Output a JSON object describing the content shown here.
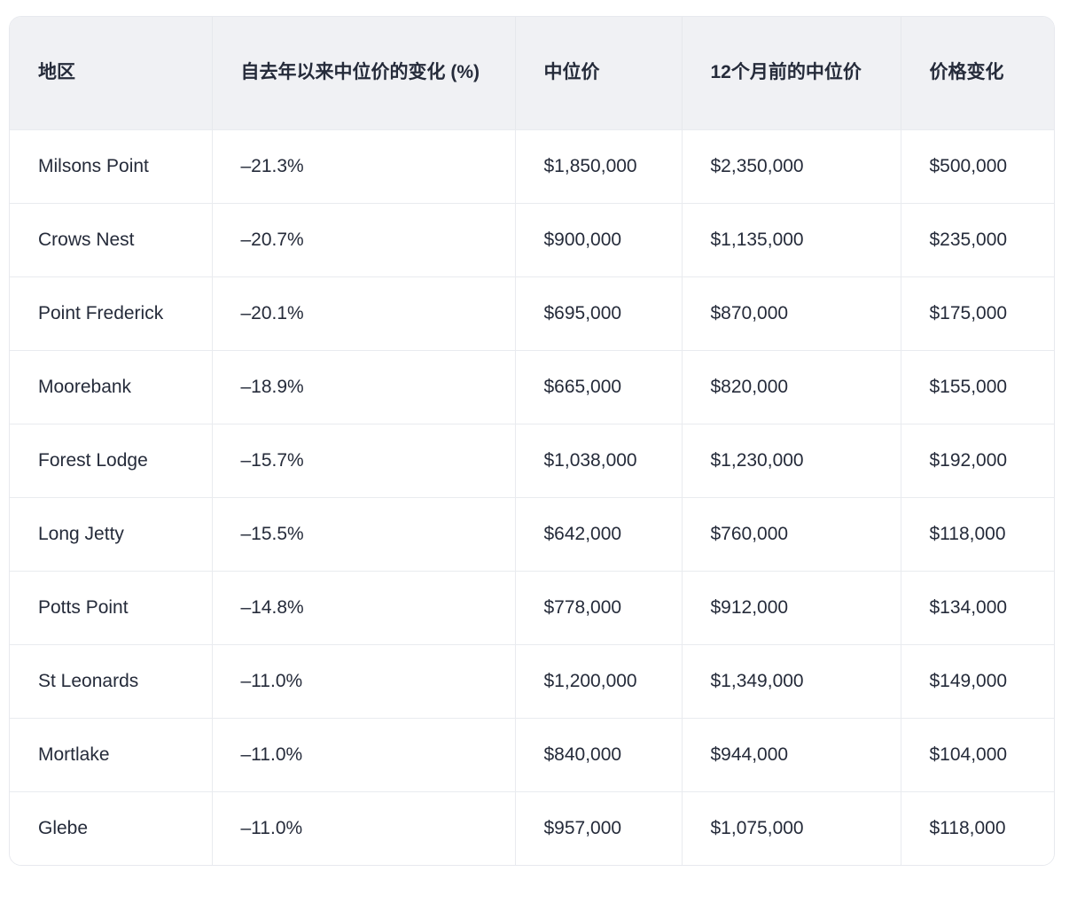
{
  "table": {
    "columns": [
      {
        "key": "region",
        "label": "地区"
      },
      {
        "key": "change_pct",
        "label": "自去年以来中位价的变化 (%)"
      },
      {
        "key": "median_price",
        "label": "中位价"
      },
      {
        "key": "median_12m",
        "label": "12个月前的中位价"
      },
      {
        "key": "price_change",
        "label": "价格变化"
      }
    ],
    "rows": [
      [
        "Milsons Point",
        "–21.3%",
        "$1,850,000",
        "$2,350,000",
        "$500,000"
      ],
      [
        "Crows Nest",
        "–20.7%",
        "$900,000",
        "$1,135,000",
        "$235,000"
      ],
      [
        "Point Frederick",
        "–20.1%",
        "$695,000",
        "$870,000",
        "$175,000"
      ],
      [
        "Moorebank",
        "–18.9%",
        "$665,000",
        "$820,000",
        "$155,000"
      ],
      [
        "Forest Lodge",
        "–15.7%",
        "$1,038,000",
        "$1,230,000",
        "$192,000"
      ],
      [
        "Long Jetty",
        "–15.5%",
        "$642,000",
        "$760,000",
        "$118,000"
      ],
      [
        "Potts Point",
        "–14.8%",
        "$778,000",
        "$912,000",
        "$134,000"
      ],
      [
        "St Leonards",
        "–11.0%",
        "$1,200,000",
        "$1,349,000",
        "$149,000"
      ],
      [
        "Mortlake",
        "–11.0%",
        "$840,000",
        "$944,000",
        "$104,000"
      ],
      [
        "Glebe",
        "–11.0%",
        "$957,000",
        "$1,075,000",
        "$118,000"
      ]
    ]
  },
  "colors": {
    "header_bg": "#f0f1f4",
    "border": "#e9ebef",
    "text": "#252b3a",
    "page_bg": "#ffffff"
  },
  "chart_data": {
    "type": "table",
    "title": "",
    "columns": [
      "地区",
      "自去年以来中位价的变化 (%)",
      "中位价",
      "12个月前的中位价",
      "价格变化"
    ],
    "regions": [
      "Milsons Point",
      "Crows Nest",
      "Point Frederick",
      "Moorebank",
      "Forest Lodge",
      "Long Jetty",
      "Potts Point",
      "St Leonards",
      "Mortlake",
      "Glebe"
    ],
    "change_pct": [
      -21.3,
      -20.7,
      -20.1,
      -18.9,
      -15.7,
      -15.5,
      -14.8,
      -11.0,
      -11.0,
      -11.0
    ],
    "median_price": [
      1850000,
      900000,
      695000,
      665000,
      1038000,
      642000,
      778000,
      1200000,
      840000,
      957000
    ],
    "median_price_12m_ago": [
      2350000,
      1135000,
      870000,
      820000,
      1230000,
      760000,
      912000,
      1349000,
      944000,
      1075000
    ],
    "price_change": [
      500000,
      235000,
      175000,
      155000,
      192000,
      118000,
      134000,
      149000,
      104000,
      118000
    ]
  }
}
